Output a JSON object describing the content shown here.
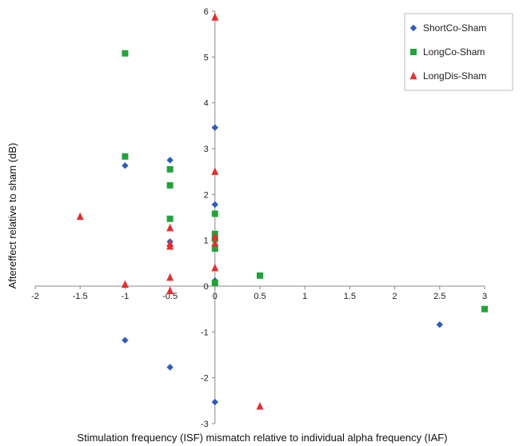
{
  "chart_data": {
    "type": "scatter",
    "title": "",
    "xlabel": "Stimulation frequency (ISF) mismatch relative to individual alpha frequency (IAF)",
    "ylabel": "Aftereffect relative to sham (dB)",
    "xlim": [
      -2,
      3
    ],
    "ylim": [
      -3,
      6
    ],
    "x_ticks": [
      "-2",
      "-1.5",
      "-1",
      "-0.5",
      "0",
      "0.5",
      "1",
      "1.5",
      "2",
      "2.5",
      "3"
    ],
    "y_ticks": [
      "-3",
      "-2",
      "-1",
      "0",
      "1",
      "2",
      "3",
      "4",
      "5",
      "6"
    ],
    "grid": false,
    "legend_position": "top-right",
    "series": [
      {
        "name": "ShortCo-Sham",
        "marker": "diamond",
        "color": "#2E5CB8",
        "points": [
          [
            -1,
            2.63
          ],
          [
            -1,
            -1.18
          ],
          [
            -0.5,
            2.75
          ],
          [
            -0.5,
            0.97
          ],
          [
            -0.5,
            -1.77
          ],
          [
            0,
            3.46
          ],
          [
            0,
            1.78
          ],
          [
            0,
            0.12
          ],
          [
            0,
            -2.53
          ],
          [
            2.5,
            -0.84
          ]
        ]
      },
      {
        "name": "LongCo-Sham",
        "marker": "square",
        "color": "#22A33A",
        "points": [
          [
            -1,
            5.08
          ],
          [
            -1,
            2.83
          ],
          [
            -0.5,
            2.55
          ],
          [
            -0.5,
            2.2
          ],
          [
            -0.5,
            1.47
          ],
          [
            0,
            1.58
          ],
          [
            0,
            1.14
          ],
          [
            0,
            1.03
          ],
          [
            0,
            0.82
          ],
          [
            0,
            0.07
          ],
          [
            0.5,
            0.23
          ],
          [
            3,
            -0.5
          ]
        ]
      },
      {
        "name": "LongDis-Sham",
        "marker": "triangle",
        "color": "#E62E2E",
        "points": [
          [
            -1.5,
            1.52
          ],
          [
            -1,
            0.04
          ],
          [
            -0.5,
            1.27
          ],
          [
            -0.5,
            0.93
          ],
          [
            -0.5,
            0.87
          ],
          [
            -0.5,
            0.19
          ],
          [
            -0.5,
            -0.1
          ],
          [
            0,
            5.87
          ],
          [
            0,
            2.5
          ],
          [
            0,
            1.08
          ],
          [
            0,
            0.94
          ],
          [
            0,
            0.4
          ],
          [
            0.5,
            -2.62
          ]
        ]
      }
    ]
  }
}
